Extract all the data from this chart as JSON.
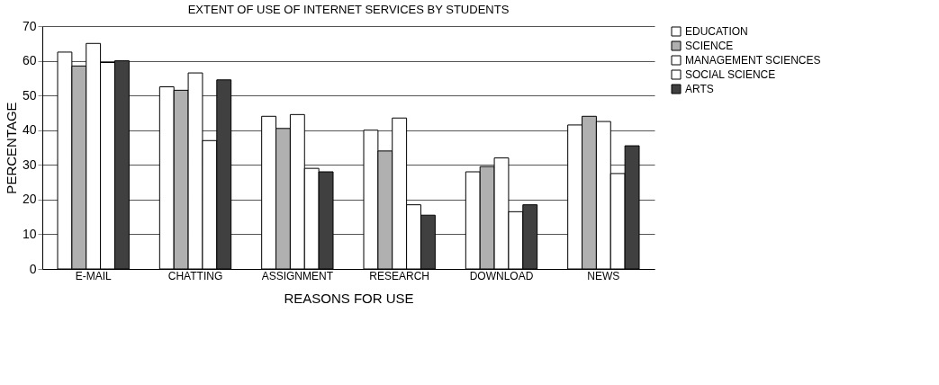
{
  "chart_data": {
    "type": "bar",
    "title": "EXTENT OF USE OF INTERNET SERVICES BY STUDENTS",
    "xlabel": "REASONS FOR USE",
    "ylabel": "PERCENTAGE",
    "categories": [
      "E-MAIL",
      "CHATTING",
      "ASSIGNMENT",
      "RESEARCH",
      "DOWNLOAD",
      "NEWS"
    ],
    "series": [
      {
        "name": "EDUCATION",
        "color": "#ffffff",
        "values": [
          62.5,
          52.5,
          44,
          40,
          28,
          41.5
        ]
      },
      {
        "name": "SCIENCE",
        "color": "#b0b0b0",
        "values": [
          58.5,
          51.5,
          40.5,
          34,
          29.5,
          44
        ]
      },
      {
        "name": "MANAGEMENT SCIENCES",
        "color": "#ffffff",
        "values": [
          65,
          56.5,
          44.5,
          43.5,
          32,
          42.5
        ]
      },
      {
        "name": "SOCIAL SCIENCE",
        "color": "#ffffff",
        "values": [
          59.5,
          37,
          29,
          18.5,
          16.5,
          27.5
        ]
      },
      {
        "name": "ARTS",
        "color": "#404040",
        "values": [
          60,
          54.5,
          28,
          15.5,
          18.5,
          35.5
        ]
      }
    ],
    "ylim": [
      0,
      70
    ],
    "yticks": [
      0,
      10,
      20,
      30,
      40,
      50,
      60,
      70
    ],
    "grid": "y",
    "legend": "right"
  }
}
